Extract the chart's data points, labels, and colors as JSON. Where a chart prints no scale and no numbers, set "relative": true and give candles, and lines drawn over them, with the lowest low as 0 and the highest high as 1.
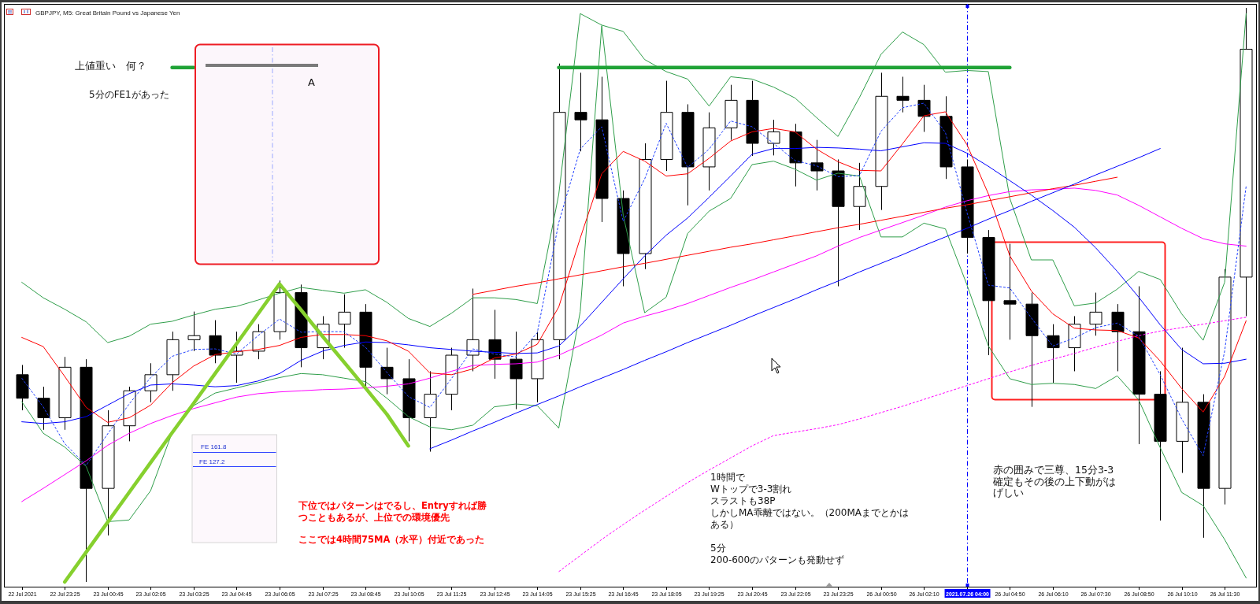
{
  "chart_data": {
    "type": "candlestick",
    "title": "GBPJPY, M5: Great Britain Pound vs Japanese Yen",
    "relative": true,
    "categories": [
      "22 Jul 2021",
      null,
      "22 Jul 23:25",
      null,
      "23 Jul 00:45",
      null,
      "23 Jul 02:05",
      null,
      "23 Jul 03:25",
      null,
      "23 Jul 04:45",
      null,
      "23 Jul 06:05",
      null,
      "23 Jul 07:25",
      null,
      "23 Jul 08:45",
      null,
      "23 Jul 10:05",
      null,
      "23 Jul 11:25",
      null,
      "23 Jul 12:45",
      null,
      "23 Jul 14:05",
      null,
      "23 Jul 15:25",
      null,
      "23 Jul 16:45",
      null,
      "23 Jul 18:05",
      null,
      "23 Jul 19:25",
      null,
      "23 Jul 20:45",
      null,
      "23 Jul 22:05",
      null,
      "23 Jul 23:25",
      null,
      "26 Jul 00:50",
      null,
      "26 Jul 02:10",
      null,
      "2021.07.26 04:00",
      null,
      "26 Jul 04:50",
      null,
      "26 Jul 06:10",
      null,
      "26 Jul 07:30",
      null,
      "26 Jul 08:50",
      null,
      "26 Jul 10:10",
      null,
      "26 Jul 11:30",
      null
    ],
    "ohlc": [
      [
        0.361,
        0.378,
        0.299,
        0.32
      ],
      [
        0.32,
        0.34,
        0.265,
        0.286
      ],
      [
        0.286,
        0.392,
        0.265,
        0.374
      ],
      [
        0.374,
        0.388,
        0,
        0.163
      ],
      [
        0.163,
        0.299,
        0.081,
        0.272
      ],
      [
        0.272,
        0.34,
        0.245,
        0.333
      ],
      [
        0.333,
        0.381,
        0.313,
        0.361
      ],
      [
        0.361,
        0.436,
        0.333,
        0.422
      ],
      [
        0.422,
        0.471,
        0.402,
        0.429
      ],
      [
        0.429,
        0.456,
        0.381,
        0.395
      ],
      [
        0.395,
        0.436,
        0.347,
        0.402
      ],
      [
        0.402,
        0.449,
        0.388,
        0.436
      ],
      [
        0.436,
        0.525,
        0.422,
        0.504
      ],
      [
        0.504,
        0.518,
        0.374,
        0.408
      ],
      [
        0.408,
        0.463,
        0.388,
        0.449
      ],
      [
        0.449,
        0.501,
        0.408,
        0.47
      ],
      [
        0.47,
        0.484,
        0.34,
        0.374
      ],
      [
        0.374,
        0.408,
        0.327,
        0.354
      ],
      [
        0.354,
        0.388,
        0.245,
        0.286
      ],
      [
        0.286,
        0.367,
        0.227,
        0.327
      ],
      [
        0.327,
        0.408,
        0.299,
        0.395
      ],
      [
        0.395,
        0.511,
        0.367,
        0.422
      ],
      [
        0.422,
        0.474,
        0.354,
        0.388
      ],
      [
        0.388,
        0.436,
        0.301,
        0.354
      ],
      [
        0.354,
        0.436,
        0.313,
        0.422
      ],
      [
        0.422,
        0.903,
        0.388,
        0.818
      ],
      [
        0.818,
        0.887,
        0.75,
        0.805
      ],
      [
        0.805,
        0.88,
        0.627,
        0.668
      ],
      [
        0.668,
        0.682,
        0.515,
        0.572
      ],
      [
        0.572,
        0.764,
        0.545,
        0.736
      ],
      [
        0.736,
        0.873,
        0.716,
        0.818
      ],
      [
        0.818,
        0.832,
        0.656,
        0.723
      ],
      [
        0.723,
        0.818,
        0.682,
        0.791
      ],
      [
        0.791,
        0.866,
        0.77,
        0.839
      ],
      [
        0.839,
        0.873,
        0.742,
        0.764
      ],
      [
        0.764,
        0.805,
        0.743,
        0.784
      ],
      [
        0.784,
        0.798,
        0.689,
        0.73
      ],
      [
        0.73,
        0.77,
        0.682,
        0.716
      ],
      [
        0.716,
        0.736,
        0.515,
        0.654
      ],
      [
        0.654,
        0.73,
        0.613,
        0.689
      ],
      [
        0.689,
        0.887,
        0.648,
        0.846
      ],
      [
        0.846,
        0.88,
        0.818,
        0.839
      ],
      [
        0.839,
        0.866,
        0.784,
        0.811
      ],
      [
        0.811,
        0.846,
        0.702,
        0.723
      ],
      [
        0.723,
        0.736,
        0.572,
        0.6
      ],
      [
        0.6,
        0.613,
        0.395,
        0.49
      ],
      [
        0.49,
        0.589,
        0.422,
        0.484
      ],
      [
        0.484,
        0.504,
        0.305,
        0.429
      ],
      [
        0.429,
        0.449,
        0.347,
        0.408
      ],
      [
        0.408,
        0.463,
        0.367,
        0.449
      ],
      [
        0.449,
        0.504,
        0.429,
        0.47
      ],
      [
        0.47,
        0.484,
        0.367,
        0.436
      ],
      [
        0.436,
        0.515,
        0.24,
        0.327
      ],
      [
        0.327,
        0.367,
        0.107,
        0.245
      ],
      [
        0.245,
        0.408,
        0.19,
        0.313
      ],
      [
        0.313,
        0.327,
        0.077,
        0.163
      ],
      [
        0.163,
        0.545,
        0.135,
        0.531
      ],
      [
        0.531,
        1,
        0.463,
        0.928
      ]
    ],
    "series": [
      {
        "type": "line",
        "color": "#2f9e4a",
        "values": [
          0.522,
          0.495,
          0.475,
          0.453,
          0.417,
          0.428,
          0.449,
          0.454,
          0.465,
          0.475,
          0.48,
          0.491,
          0.503,
          0.513,
          0.508,
          0.503,
          0.509,
          0.487,
          0.459,
          0.445,
          0.468,
          0.495,
          0.495,
          0.492,
          0.485,
          0.675,
          0.99,
          0.97,
          0.959,
          0.91,
          0.889,
          0.876,
          0.829,
          0.88,
          0.876,
          0.862,
          0.843,
          0.809,
          0.776,
          0.844,
          0.919,
          0.958,
          0.936,
          0.888,
          0.891,
          0.889,
          0.668,
          0.561,
          0.561,
          0.481,
          0.486,
          0.51,
          0.541,
          0.527,
          0.467,
          0.421,
          0.522,
          0.99
        ]
      },
      {
        "type": "line",
        "color": "#2f9e4a",
        "values": [
          0.314,
          0.259,
          0.235,
          0.201,
          0.105,
          0.108,
          0.159,
          0.26,
          0.307,
          0.329,
          0.338,
          0.347,
          0.356,
          0.363,
          0.361,
          0.355,
          0.349,
          0.32,
          0.288,
          0.27,
          0.265,
          0.273,
          0.305,
          0.31,
          0.307,
          0.268,
          0.471,
          0.969,
          0.639,
          0.469,
          0.496,
          0.607,
          0.646,
          0.668,
          0.727,
          0.733,
          0.719,
          0.7,
          0.712,
          0.707,
          0.601,
          0.601,
          0.625,
          0.615,
          0.518,
          0.411,
          0.354,
          0.344,
          0.346,
          0.344,
          0.337,
          0.359,
          0.317,
          0.234,
          0.156,
          0.133,
          0.074,
          0.007
        ]
      },
      {
        "type": "line",
        "color": "#ff00ff",
        "values": [
          0.14,
          0.163,
          0.187,
          0.211,
          0.238,
          0.259,
          0.276,
          0.29,
          0.302,
          0.312,
          0.322,
          0.328,
          0.331,
          0.333,
          0.335,
          0.336,
          0.338,
          0.341,
          0.345,
          0.355,
          0.367,
          0.377,
          0.379,
          0.38,
          0.383,
          0.395,
          0.412,
          0.43,
          0.451,
          0.463,
          0.473,
          0.485,
          0.499,
          0.513,
          0.526,
          0.54,
          0.554,
          0.568,
          0.585,
          0.6,
          0.613,
          0.626,
          0.639,
          0.653,
          0.664,
          0.673,
          0.68,
          0.683,
          0.684,
          0.686,
          0.682,
          0.674,
          0.656,
          0.636,
          0.616,
          0.598,
          0.589,
          0.585
        ]
      },
      {
        "type": "line",
        "color": "#0000ff",
        "values": [
          0.279,
          0.276,
          0.279,
          0.288,
          0.308,
          0.328,
          0.343,
          0.345,
          0.343,
          0.34,
          0.342,
          0.35,
          0.363,
          0.386,
          0.402,
          0.412,
          0.418,
          0.417,
          0.413,
          0.408,
          0.405,
          0.402,
          0.4,
          0.398,
          0.399,
          0.411,
          0.446,
          0.487,
          0.528,
          0.568,
          0.604,
          0.634,
          0.67,
          0.707,
          0.745,
          0.755,
          0.755,
          0.757,
          0.756,
          0.754,
          0.751,
          0.758,
          0.765,
          0.764,
          0.747,
          0.724,
          0.699,
          0.674,
          0.647,
          0.618,
          0.582,
          0.541,
          0.496,
          0.448,
          0.405,
          0.38,
          0.381,
          0.388
        ]
      },
      {
        "type": "line",
        "color": "#ff0000",
        "values": [
          0.426,
          0.41,
          0.358,
          0.304,
          0.278,
          0.286,
          0.308,
          0.347,
          0.376,
          0.396,
          0.401,
          0.405,
          0.412,
          0.426,
          0.431,
          0.431,
          0.429,
          0.42,
          0.402,
          0.364,
          0.361,
          0.371,
          0.39,
          0.397,
          0.414,
          0.479,
          0.599,
          0.711,
          0.75,
          0.733,
          0.707,
          0.711,
          0.738,
          0.768,
          0.784,
          0.79,
          0.784,
          0.754,
          0.732,
          0.717,
          0.716,
          0.763,
          0.812,
          0.819,
          0.762,
          0.676,
          0.568,
          0.507,
          0.467,
          0.442,
          0.439,
          0.438,
          0.425,
          0.385,
          0.337,
          0.296,
          0.358,
          0.455
        ]
      },
      {
        "type": "line",
        "color": "#2040ff",
        "line_style": "dotted",
        "values": [
          0.355,
          0.305,
          0.241,
          0.203,
          0.258,
          0.31,
          0.356,
          0.393,
          0.405,
          0.406,
          0.397,
          0.429,
          0.458,
          0.435,
          0.436,
          0.436,
          0.409,
          0.365,
          0.323,
          0.304,
          0.354,
          0.406,
          0.397,
          0.392,
          0.434,
          0.626,
          0.754,
          0.793,
          0.628,
          0.702,
          0.799,
          0.722,
          0.754,
          0.803,
          0.793,
          0.764,
          0.734,
          0.725,
          0.706,
          0.708,
          0.785,
          0.826,
          0.834,
          0.783,
          0.644,
          0.517,
          0.512,
          0.46,
          0.411,
          0.425,
          0.443,
          0.451,
          0.428,
          0.361,
          0.284,
          0.22,
          0.402,
          0.689
        ]
      },
      {
        "type": "line",
        "color": "#ff0000",
        "values": [
          null,
          null,
          null,
          null,
          null,
          null,
          null,
          null,
          null,
          null,
          null,
          null,
          null,
          null,
          null,
          null,
          null,
          null,
          null,
          null,
          null,
          0.501,
          0.508,
          0.515,
          0.521,
          0.528,
          0.535,
          0.542,
          0.549,
          0.555,
          0.562,
          0.569,
          0.576,
          0.583,
          0.589,
          0.596,
          0.603,
          0.61,
          0.617,
          0.623,
          0.63,
          0.637,
          0.644,
          0.651,
          0.657,
          0.664,
          0.671,
          0.678,
          0.685,
          0.691,
          0.698,
          0.705,
          null,
          null,
          null,
          null,
          null,
          null
        ]
      },
      {
        "type": "line",
        "color": "#0000ff",
        "values": [
          null,
          null,
          null,
          null,
          null,
          null,
          null,
          null,
          null,
          null,
          null,
          null,
          null,
          null,
          null,
          null,
          null,
          null,
          null,
          0.232,
          0.247,
          0.263,
          0.278,
          0.294,
          0.309,
          0.324,
          0.34,
          0.355,
          0.37,
          0.386,
          0.401,
          0.417,
          0.432,
          0.447,
          0.463,
          0.478,
          0.493,
          0.509,
          0.524,
          0.54,
          0.555,
          0.57,
          0.586,
          0.601,
          0.616,
          0.632,
          0.647,
          0.663,
          0.678,
          0.693,
          0.709,
          0.724,
          0.739,
          0.755,
          null,
          null,
          null,
          null
        ]
      },
      {
        "type": "line",
        "color": "#ff00ff",
        "line_style": "dotted",
        "values": [
          null,
          null,
          null,
          null,
          null,
          null,
          null,
          null,
          null,
          null,
          null,
          null,
          null,
          null,
          null,
          null,
          null,
          null,
          null,
          null,
          null,
          null,
          null,
          null,
          null,
          0.018,
          0.046,
          0.074,
          0.1,
          0.125,
          0.149,
          0.173,
          0.195,
          0.216,
          0.237,
          0.255,
          0.261,
          0.267,
          0.274,
          0.284,
          0.295,
          0.306,
          0.318,
          0.33,
          0.342,
          0.354,
          0.366,
          0.377,
          0.388,
          0.398,
          0.409,
          0.419,
          0.429,
          0.437,
          0.443,
          0.449,
          0.455,
          0.461
        ]
      },
      {
        "type": "line",
        "color": "#1fa336",
        "values": [
          null,
          null,
          null,
          null,
          null,
          null,
          null,
          null,
          null,
          null,
          null,
          null,
          null,
          null,
          null,
          null,
          null,
          null,
          null,
          null,
          null,
          null,
          null,
          null,
          null,
          0.896,
          0.896,
          0.896,
          0.896,
          0.896,
          0.896,
          0.896,
          0.896,
          0.896,
          0.896,
          0.896,
          0.896,
          0.896,
          0.896,
          0.896,
          0.896,
          0.896,
          0.896,
          0.896,
          0.896,
          0.896,
          0.896,
          null,
          null,
          null,
          null,
          null,
          null,
          null,
          null,
          null,
          null,
          null
        ]
      },
      {
        "type": "line",
        "color": "#1fa336",
        "values": [
          null,
          null,
          null,
          null,
          null,
          null,
          null,
          0.896,
          0.896,
          null,
          null,
          null,
          null,
          null,
          null,
          null,
          null,
          null,
          null,
          null,
          null,
          null,
          null,
          null,
          null,
          null,
          null,
          null,
          null,
          null,
          null,
          null,
          null,
          null,
          null,
          null,
          null,
          null,
          null,
          null,
          null,
          null,
          null,
          null,
          null,
          null,
          null,
          null,
          null,
          null,
          null,
          null,
          null,
          null,
          null,
          null,
          null,
          null
        ]
      },
      {
        "type": "line",
        "color": "#86d02e",
        "values": [
          null,
          null,
          0,
          0.052,
          0.104,
          0.156,
          0.208,
          0.26,
          0.311,
          0.363,
          0.415,
          0.467,
          0.519,
          0.474,
          0.428,
          0.383,
          0.338,
          0.292,
          0.237,
          null,
          null,
          null,
          null,
          null,
          null,
          null,
          null,
          null,
          null,
          null,
          null,
          null,
          null,
          null,
          null,
          null,
          null,
          null,
          null,
          null,
          null,
          null,
          null,
          null,
          null,
          null,
          null,
          null,
          null,
          null,
          null,
          null,
          null,
          null,
          null,
          null,
          null,
          null
        ]
      }
    ],
    "ref_lines": [
      {
        "axis": "x",
        "value": "2021.07.26 04:00",
        "color": "#0000ff",
        "line_style": "dashed"
      }
    ],
    "annotations": [
      "上値重い　何？",
      "5分のFE1があった",
      "A",
      "FE 161.8",
      "FE 127.2",
      "下位ではパターンはでるし、Entryすれば勝つこともあるが、上位での環境優先",
      "ここでは4時間75MA（水平）付近であった",
      "1時間で",
      "Wトップで3-3割れ",
      "スラストも38P",
      "しかしMA乖離ではない。（200MAまでとかはある）",
      "5分",
      "200-600のパターンも発動せず",
      "赤の囲みで三尊、15分3-3確定もその後の上下動がはげしい"
    ]
  }
}
